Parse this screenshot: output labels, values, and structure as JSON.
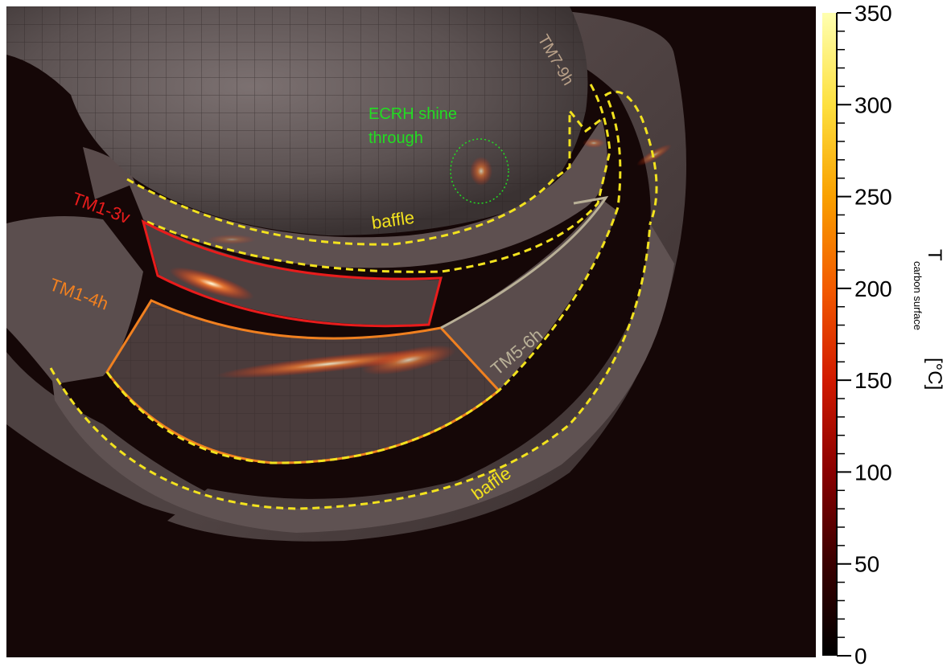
{
  "annotations": {
    "ecrh": "ECRH shine",
    "ecrh_2": "through",
    "tm7": "TM7-9h",
    "tm1_3v": "TM1-3v",
    "tm1_4h": "TM1-4h",
    "tm5_6h": "TM5-6h",
    "baffle_upper": "baffle",
    "baffle_lower": "baffle"
  },
  "annotation_colors": {
    "ecrh": "#22dd22",
    "tm7": "#b8a088",
    "tm1_3v": "#e81c1c",
    "tm1_4h": "#f08020",
    "tm5_6h": "#b9b097",
    "baffle": "#f2e21e"
  },
  "colorbar": {
    "ticks": [
      "0",
      "50",
      "100",
      "150",
      "200",
      "250",
      "300",
      "350"
    ],
    "min": 0,
    "max": 350,
    "label_main": "T",
    "label_sub": "carbon surface",
    "label_unit": "[°C]",
    "colors": [
      "#000000",
      "#3a0000",
      "#8a0000",
      "#d11a00",
      "#f25a00",
      "#f9a000",
      "#fde040",
      "#ffffb0"
    ]
  }
}
